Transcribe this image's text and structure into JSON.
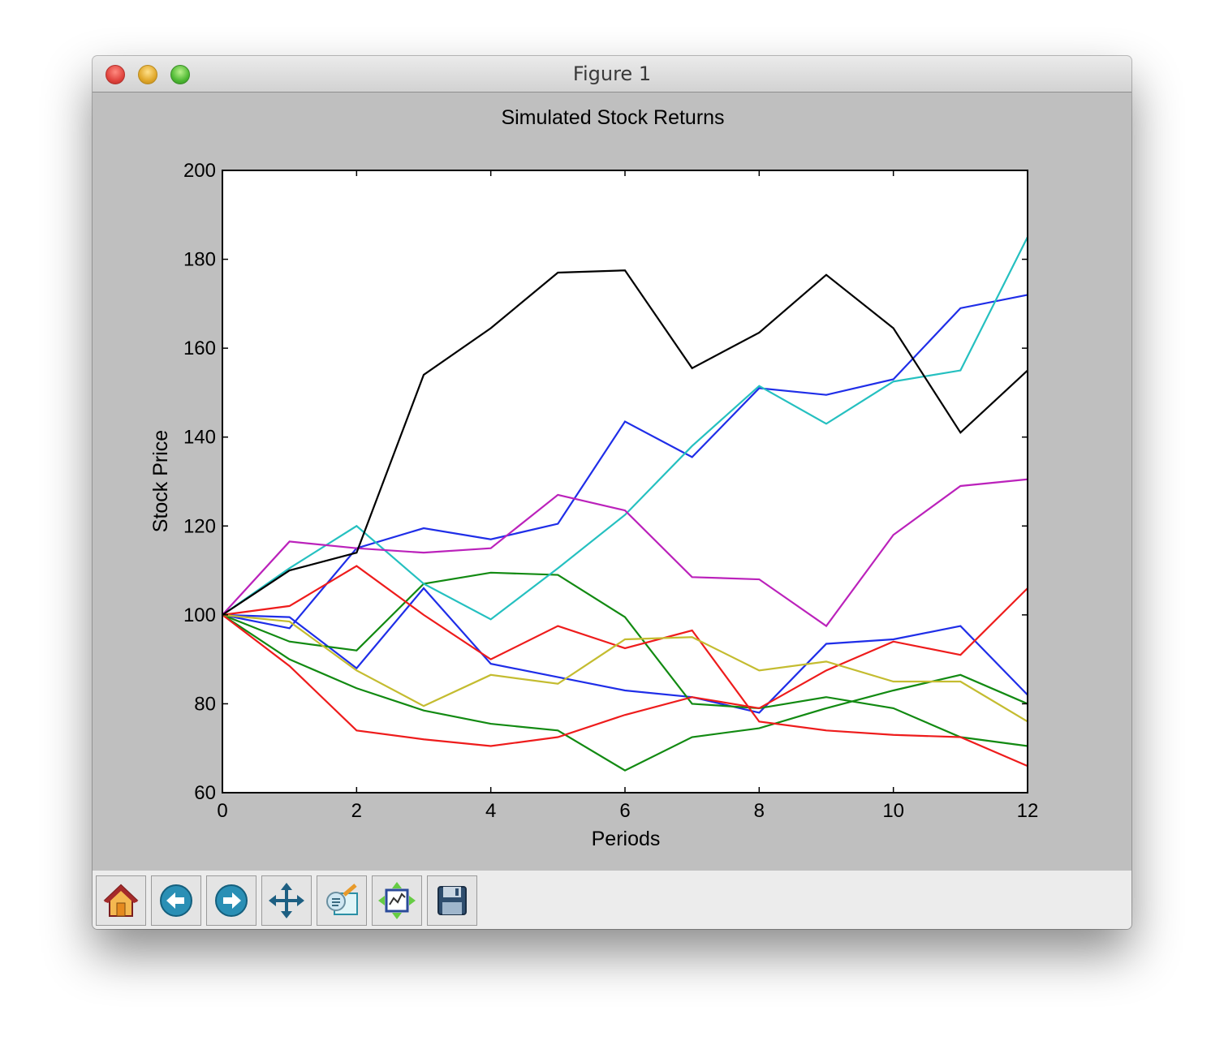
{
  "window": {
    "title": "Figure 1"
  },
  "toolbar": {
    "buttons": [
      "home-icon",
      "back-icon",
      "forward-icon",
      "pan-icon",
      "zoom-icon",
      "subplots-icon",
      "save-icon"
    ]
  },
  "chart_data": {
    "type": "line",
    "title": "Simulated Stock Returns",
    "xlabel": "Periods",
    "ylabel": "Stock Price",
    "xlim": [
      0,
      12
    ],
    "ylim": [
      60,
      200
    ],
    "xticks": [
      0,
      2,
      4,
      6,
      8,
      10,
      12
    ],
    "yticks": [
      60,
      80,
      100,
      120,
      140,
      160,
      180,
      200
    ],
    "grid": false,
    "x": [
      0,
      1,
      2,
      3,
      4,
      5,
      6,
      7,
      8,
      9,
      10,
      11,
      12
    ],
    "series": [
      {
        "color": "#1f2ee8",
        "values": [
          100,
          97,
          115,
          119.5,
          117,
          120.5,
          143.5,
          135.5,
          151,
          149.5,
          153,
          169,
          172
        ]
      },
      {
        "color": "#1f2ee8",
        "values": [
          100,
          99.5,
          88,
          106,
          89,
          86,
          83,
          81.5,
          78,
          93.5,
          94.5,
          97.5,
          82
        ]
      },
      {
        "color": "#128a12",
        "values": [
          100,
          94,
          92,
          107,
          109.5,
          109,
          99.5,
          80,
          79,
          81.5,
          79,
          72.5,
          70.5
        ]
      },
      {
        "color": "#128a12",
        "values": [
          100,
          90,
          83.5,
          78.5,
          75.5,
          74,
          65,
          72.5,
          74.5,
          79,
          83,
          86.5,
          80
        ]
      },
      {
        "color": "#ee1c1c",
        "values": [
          100,
          102,
          111,
          100,
          90,
          97.5,
          92.5,
          96.5,
          76,
          74,
          73,
          72.5,
          66
        ]
      },
      {
        "color": "#ee1c1c",
        "values": [
          100,
          88.5,
          74,
          72,
          70.5,
          72.5,
          77.5,
          81.5,
          79,
          87.5,
          94,
          91,
          106
        ]
      },
      {
        "color": "#25c0c0",
        "values": [
          100,
          110.5,
          120,
          107,
          99,
          110.5,
          122.5,
          138,
          151.5,
          143,
          152.5,
          155,
          185
        ]
      },
      {
        "color": "#bb22bb",
        "values": [
          100,
          116.5,
          115,
          114,
          115,
          127,
          123.5,
          108.5,
          108,
          97.5,
          118,
          129,
          130.5
        ]
      },
      {
        "color": "#c4bc30",
        "values": [
          100,
          98.5,
          87.5,
          79.5,
          86.5,
          84.5,
          94.5,
          95,
          87.5,
          89.5,
          85,
          85,
          76
        ]
      },
      {
        "color": "#000000",
        "values": [
          100,
          110,
          114,
          154,
          164.5,
          177,
          177.5,
          155.5,
          163.5,
          176.5,
          164.5,
          141,
          155
        ]
      }
    ]
  }
}
